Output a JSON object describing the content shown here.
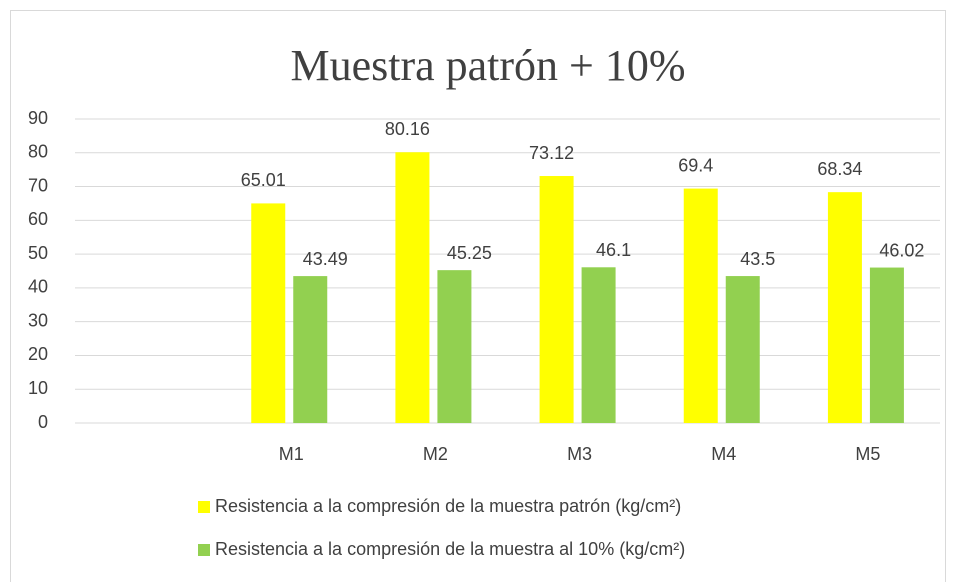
{
  "chart_data": {
    "type": "bar",
    "title": "Muestra patrón + 10%",
    "categories": [
      null,
      "M1",
      "M2",
      "M3",
      "M4",
      "M5"
    ],
    "series": [
      {
        "name": "Resistencia a la compresión de la muestra patrón (kg/cm²)",
        "color": "#ffff00",
        "values": [
          null,
          65.01,
          80.16,
          73.12,
          69.4,
          68.34
        ]
      },
      {
        "name": "Resistencia a la compresión de la muestra al 10% (kg/cm²)",
        "color": "#92d050",
        "values": [
          null,
          43.49,
          45.25,
          46.1,
          43.5,
          46.02
        ]
      }
    ],
    "ylim": [
      0,
      90
    ],
    "yticks": [
      0,
      10,
      20,
      30,
      40,
      50,
      60,
      70,
      80,
      90
    ],
    "grid": true,
    "legend": "bottom"
  }
}
